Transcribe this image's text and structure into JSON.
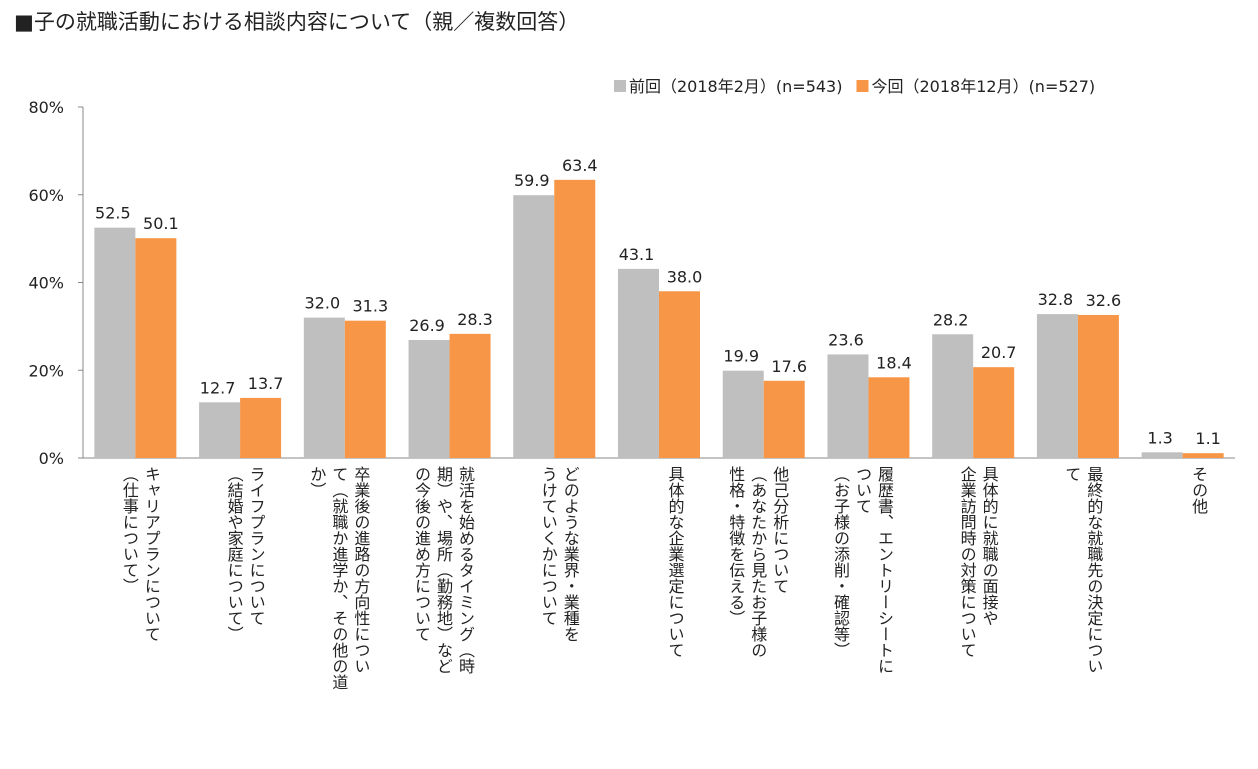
{
  "chart_data": {
    "type": "bar",
    "title": "■子の就職活動における相談内容について（親／複数回答）",
    "xlabel": "",
    "ylabel": "",
    "ylim": [
      0,
      80
    ],
    "yticks": [
      0,
      20,
      40,
      60,
      80
    ],
    "ytick_labels": [
      "0%",
      "20%",
      "40%",
      "60%",
      "80%"
    ],
    "grid": false,
    "legend_position": "top-right",
    "categories": [
      [
        "キャリアプランについて",
        "（仕事について）"
      ],
      [
        "ライフプランについて",
        "（結婚や家庭について）"
      ],
      [
        "卒業後の進路の方向性につい",
        "て（就職か進学か、その他の道",
        "か）"
      ],
      [
        "就活を始めるタイミング（時",
        "期）や、場所（勤務地）など",
        "の今後の進め方について"
      ],
      [
        "どのような業界・業種を",
        "うけていくかについて"
      ],
      [
        "具体的な企業選定について"
      ],
      [
        "他己分析について",
        "（あなたから見たお子様の",
        "性格・特徴を伝える）"
      ],
      [
        "履歴書、エントリーシートに",
        "ついて",
        "（お子様の添削・確認等）"
      ],
      [
        "具体的に就職の面接や",
        "企業訪問時の対策について"
      ],
      [
        "最終的な就職先の決定につい",
        "て"
      ],
      [
        "その他"
      ]
    ],
    "series": [
      {
        "name": "前回（2018年2月）(n=543)",
        "color": "#bfbfbf",
        "values": [
          52.5,
          12.7,
          32.0,
          26.9,
          59.9,
          43.1,
          19.9,
          23.6,
          28.2,
          32.8,
          1.3
        ],
        "labels": [
          "52.5",
          "12.7",
          "32.0",
          "26.9",
          "59.9",
          "43.1",
          "19.9",
          "23.6",
          "28.2",
          "32.8",
          "1.3"
        ]
      },
      {
        "name": "今回（2018年12月）(n=527)",
        "color": "#f79646",
        "values": [
          50.1,
          13.7,
          31.3,
          28.3,
          63.4,
          38.0,
          17.6,
          18.4,
          20.7,
          32.6,
          1.1
        ],
        "labels": [
          "50.1",
          "13.7",
          "31.3",
          "28.3",
          "63.4",
          "38.0",
          "17.6",
          "18.4",
          "20.7",
          "32.6",
          "1.1"
        ]
      }
    ]
  }
}
